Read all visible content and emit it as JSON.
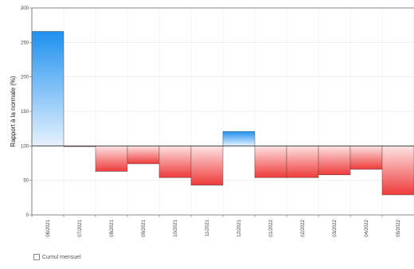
{
  "chart_data": {
    "type": "bar",
    "baseline": 100,
    "categories": [
      "06/2021",
      "07/2021",
      "08/2021",
      "09/2021",
      "10/2021",
      "11/2021",
      "12/2021",
      "01/2022",
      "02/2022",
      "03/2022",
      "04/2022",
      "05/2022"
    ],
    "series": [
      {
        "name": "Cumul mensuel",
        "values": [
          266,
          99,
          63,
          74,
          54,
          43,
          121,
          54,
          54,
          58,
          66,
          29
        ]
      }
    ],
    "y_ticks": [
      "0",
      "50",
      "100",
      "150",
      "200",
      "250",
      "300"
    ],
    "ylim": [
      0,
      300
    ],
    "ylabel": "Rapport à la normale (%)",
    "xlabel": "",
    "grid": true,
    "legend_position": "bottom-left",
    "colors": {
      "above_top": "#1e90f0",
      "above_bottom": "#e6f2fd",
      "below_top": "#fde3e3",
      "below_bottom": "#ef3a3a",
      "baseline": "#333333",
      "grid": "#e6e6e6",
      "outline": "#555555"
    }
  }
}
